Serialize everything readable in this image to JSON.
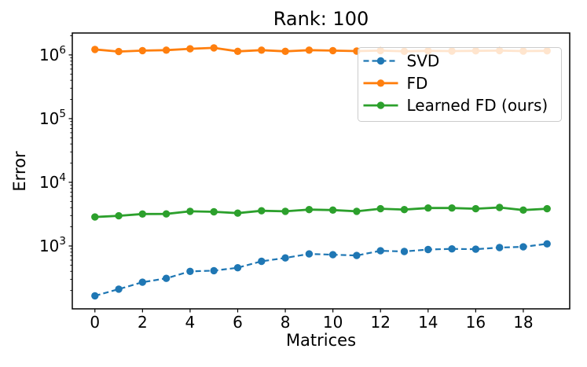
{
  "chart_data": {
    "type": "line",
    "title": "Rank: 100",
    "xlabel": "Matrices",
    "ylabel": "Error",
    "yscale": "log",
    "grid": false,
    "legend_position": "upper right",
    "x": [
      0,
      1,
      2,
      3,
      4,
      5,
      6,
      7,
      8,
      9,
      10,
      11,
      12,
      13,
      14,
      15,
      16,
      17,
      18,
      19
    ],
    "xticks": [
      0,
      2,
      4,
      6,
      8,
      10,
      12,
      14,
      16,
      18
    ],
    "yticks": [
      1000,
      10000,
      100000,
      1000000
    ],
    "xlim": [
      -0.95,
      19.95
    ],
    "ylim": [
      103,
      2210000
    ],
    "series": [
      {
        "name": "SVD",
        "color": "#1f77b4",
        "linestyle": "dashed",
        "marker": "circle",
        "values": [
          165,
          210,
          270,
          310,
          400,
          410,
          455,
          575,
          650,
          750,
          730,
          710,
          840,
          820,
          880,
          900,
          890,
          945,
          970,
          1080
        ]
      },
      {
        "name": "FD",
        "color": "#ff7f0e",
        "linestyle": "solid",
        "marker": "circle",
        "values": [
          1220000,
          1130000,
          1170000,
          1190000,
          1250000,
          1290000,
          1140000,
          1190000,
          1140000,
          1190000,
          1170000,
          1150000,
          1170000,
          1140000,
          1160000,
          1150000,
          1160000,
          1170000,
          1150000,
          1160000
        ]
      },
      {
        "name": "Learned FD (ours)",
        "color": "#2ca02c",
        "linestyle": "solid",
        "marker": "circle",
        "values": [
          2850,
          2980,
          3180,
          3190,
          3500,
          3440,
          3280,
          3570,
          3500,
          3730,
          3670,
          3500,
          3850,
          3730,
          3950,
          3950,
          3850,
          4030,
          3670,
          3850
        ]
      }
    ]
  }
}
